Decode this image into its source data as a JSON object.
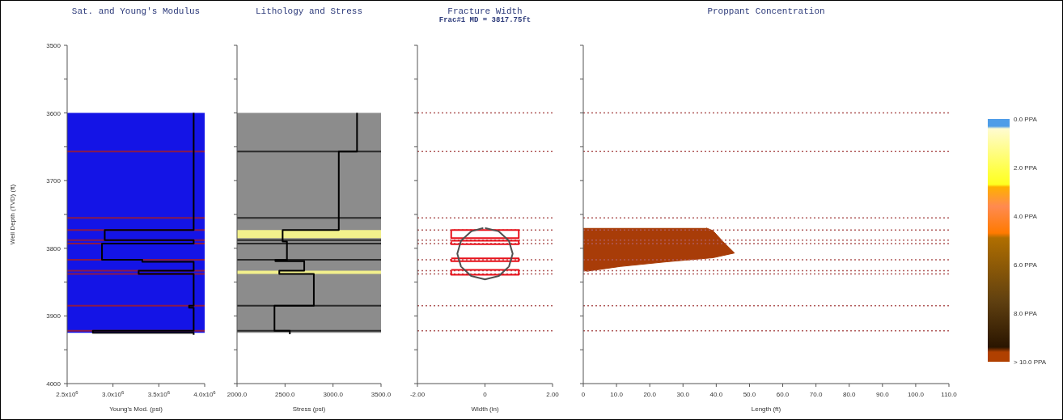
{
  "chart_data": [
    {
      "type": "line",
      "title": "Sat. and Young's Modulus",
      "xlabel": "Young's Mod. (psi)",
      "ylabel": "Well Depth (TVD) (ft)",
      "xlim": [
        2500000,
        4000000
      ],
      "xticks": [
        {
          "value": 2500000,
          "label": "2.5x10$^{6}$"
        },
        {
          "value": 3000000,
          "label": "3.0x10$^{6}$"
        },
        {
          "value": 3500000,
          "label": "3.5x10$^{6}$"
        },
        {
          "value": 4000000,
          "label": "4.0x10$^{6}$"
        }
      ],
      "ylim": [
        4000,
        3500
      ],
      "yticks": [
        3500,
        {
          "value": 3550,
          "label": null
        },
        3600,
        {
          "value": 3650,
          "label": null
        },
        3700,
        {
          "value": 3750,
          "label": null
        },
        3800,
        {
          "value": 3850,
          "label": null
        },
        3900,
        {
          "value": 3950,
          "label": null
        },
        4000
      ],
      "bands": [
        {
          "axis": "y",
          "from": 3600,
          "to": 3925,
          "color": "#1414e6"
        }
      ],
      "ref_lines": [
        {
          "axis": "y",
          "value": 3657,
          "color": "#8b1a4a"
        },
        {
          "axis": "y",
          "value": 3755,
          "color": "#8b1a4a"
        },
        {
          "axis": "y",
          "value": 3773,
          "color": "#8b1a4a"
        },
        {
          "axis": "y",
          "value": 3788,
          "color": "#8b1a4a"
        },
        {
          "axis": "y",
          "value": 3793,
          "color": "#8b1a4a"
        },
        {
          "axis": "y",
          "value": 3817,
          "color": "#8b1a4a"
        },
        {
          "axis": "y",
          "value": 3833,
          "color": "#8b1a4a"
        },
        {
          "axis": "y",
          "value": 3838,
          "color": "#8b1a4a"
        },
        {
          "axis": "y",
          "value": 3885,
          "color": "#8b1a4a"
        },
        {
          "axis": "y",
          "value": 3922,
          "color": "#8b1a4a"
        }
      ],
      "series": [
        {
          "color": "#000000",
          "x": [
            3880000,
            3880000,
            2910000,
            2910000,
            3880000,
            3880000,
            2880000,
            2880000,
            3320000,
            3320000,
            3880000,
            3880000,
            3280000,
            3280000,
            3880000,
            3880000,
            3830000,
            3830000,
            3880000,
            3880000,
            2780000,
            2780000,
            3880000,
            3880000
          ],
          "values": [
            3600,
            3773,
            3773,
            3788,
            3788,
            3793,
            3793,
            3817,
            3817,
            3820,
            3820,
            3833,
            3833,
            3838,
            3838,
            3885,
            3885,
            3888,
            3888,
            3922,
            3922,
            3925,
            3925,
            3928
          ]
        }
      ]
    },
    {
      "type": "line",
      "title": "Lithology and Stress",
      "xlabel": "Stress (psi)",
      "tick_labels": "x",
      "xlim": [
        2000,
        3500
      ],
      "xticks": [
        {
          "value": 2000,
          "label": "2000.0"
        },
        {
          "value": 2500,
          "label": "2500.0"
        },
        {
          "value": 3000,
          "label": "3000.0"
        },
        {
          "value": 3500,
          "label": "3500.0"
        }
      ],
      "ylim": [
        4000,
        3500
      ],
      "yticks": [
        3500,
        {
          "value": 3550,
          "label": null
        },
        3600,
        {
          "value": 3650,
          "label": null
        },
        3700,
        {
          "value": 3750,
          "label": null
        },
        3800,
        {
          "value": 3850,
          "label": null
        },
        3900,
        {
          "value": 3950,
          "label": null
        },
        4000
      ],
      "bands": [
        {
          "axis": "y",
          "from": 3600,
          "to": 3925,
          "color": "#8c8c8c"
        },
        {
          "axis": "y",
          "from": 3773,
          "to": 3785,
          "color": "#f2f08c"
        },
        {
          "axis": "y",
          "from": 3833,
          "to": 3838,
          "color": "#f2f08c"
        }
      ],
      "ref_lines": [
        {
          "axis": "y",
          "value": 3657,
          "color": "#2a2a2a"
        },
        {
          "axis": "y",
          "value": 3755,
          "color": "#2a2a2a"
        },
        {
          "axis": "y",
          "value": 3788,
          "color": "#2a2a2a"
        },
        {
          "axis": "y",
          "value": 3793,
          "color": "#2a2a2a"
        },
        {
          "axis": "y",
          "value": 3817,
          "color": "#2a2a2a"
        },
        {
          "axis": "y",
          "value": 3885,
          "color": "#2a2a2a"
        },
        {
          "axis": "y",
          "value": 3922,
          "color": "#2a2a2a"
        }
      ],
      "series": [
        {
          "color": "#000000",
          "x": [
            3250,
            3250,
            3060,
            3060,
            2475,
            2475,
            2520,
            2520,
            2400,
            2400,
            2700,
            2700,
            2440,
            2440,
            2800,
            2800,
            2390,
            2390,
            2550,
            2550
          ],
          "values": [
            3600,
            3657,
            3657,
            3773,
            3773,
            3790,
            3790,
            3817,
            3817,
            3819,
            3819,
            3833,
            3833,
            3838,
            3838,
            3885,
            3885,
            3922,
            3922,
            3927
          ]
        }
      ]
    },
    {
      "type": "line",
      "title": "Fracture Width",
      "subtitle": "Frac#1 MD = 3817.75ft",
      "xlabel": "Width (in)",
      "tick_labels": "x",
      "xlim": [
        -2,
        2
      ],
      "xticks": [
        {
          "value": -2,
          "label": "-2.00"
        },
        0,
        {
          "value": 2,
          "label": "2.00"
        }
      ],
      "ylim": [
        4000,
        3500
      ],
      "yticks": [
        3500,
        {
          "value": 3550,
          "label": null
        },
        3600,
        {
          "value": 3650,
          "label": null
        },
        3700,
        {
          "value": 3750,
          "label": null
        },
        3800,
        {
          "value": 3850,
          "label": null
        },
        3900,
        {
          "value": 3950,
          "label": null
        },
        4000
      ],
      "ref_lines": [
        {
          "axis": "y",
          "value": 3600,
          "color": "#b05a5a",
          "line_style": "dotted"
        },
        {
          "axis": "y",
          "value": 3657,
          "color": "#b05a5a",
          "line_style": "dotted"
        },
        {
          "axis": "y",
          "value": 3755,
          "color": "#b05a5a",
          "line_style": "dotted"
        },
        {
          "axis": "y",
          "value": 3773,
          "color": "#b05a5a",
          "line_style": "dotted"
        },
        {
          "axis": "y",
          "value": 3788,
          "color": "#b05a5a",
          "line_style": "dotted"
        },
        {
          "axis": "y",
          "value": 3793,
          "color": "#b05a5a",
          "line_style": "dotted"
        },
        {
          "axis": "y",
          "value": 3817,
          "color": "#b05a5a",
          "line_style": "dotted"
        },
        {
          "axis": "y",
          "value": 3833,
          "color": "#b05a5a",
          "line_style": "dotted"
        },
        {
          "axis": "y",
          "value": 3838,
          "color": "#b05a5a",
          "line_style": "dotted"
        },
        {
          "axis": "y",
          "value": 3885,
          "color": "#b05a5a",
          "line_style": "dotted"
        },
        {
          "axis": "y",
          "value": 3922,
          "color": "#b05a5a",
          "line_style": "dotted"
        }
      ],
      "series": [
        {
          "color": "#e8101a",
          "x": [
            -1,
            1,
            1,
            -1,
            -1
          ],
          "values": [
            3773,
            3773,
            3785,
            3785,
            3774
          ]
        },
        {
          "color": "#e8101a",
          "x": [
            -1,
            1,
            1,
            -1,
            -1
          ],
          "values": [
            3789,
            3789,
            3794,
            3794,
            3790
          ]
        },
        {
          "color": "#e8101a",
          "x": [
            -1,
            1,
            1,
            -1,
            -1
          ],
          "values": [
            3815,
            3815,
            3819,
            3819,
            3816
          ]
        },
        {
          "color": "#e8101a",
          "x": [
            -1,
            1,
            1,
            -1,
            -1
          ],
          "values": [
            3832,
            3832,
            3839,
            3839,
            3833
          ]
        },
        {
          "color": "#505050",
          "x": [
            0,
            0.41,
            0.71,
            0.82,
            0.71,
            0.41,
            0,
            -0.41,
            -0.71,
            -0.82,
            -0.71,
            -0.41,
            -0.05
          ],
          "values": [
            3770,
            3775,
            3789,
            3808,
            3827,
            3841,
            3846,
            3841,
            3827,
            3808,
            3789,
            3775,
            3770
          ]
        }
      ]
    },
    {
      "type": "area",
      "title": "Proppant Concentration",
      "xlabel": "Length (ft)",
      "tick_labels": "x",
      "orientation": "horizontal",
      "xlim": [
        0,
        110
      ],
      "xticks": [
        0,
        {
          "value": 10,
          "label": "10.0"
        },
        {
          "value": 20,
          "label": "20.0"
        },
        {
          "value": 30,
          "label": "30.0"
        },
        {
          "value": 40,
          "label": "40.0"
        },
        {
          "value": 50,
          "label": "50.0"
        },
        {
          "value": 60,
          "label": "60.0"
        },
        {
          "value": 70,
          "label": "70.0"
        },
        {
          "value": 80,
          "label": "80.0"
        },
        {
          "value": 90,
          "label": "90.0"
        },
        {
          "value": 100,
          "label": "100.0"
        },
        {
          "value": 110,
          "label": "110.0"
        }
      ],
      "ylim": [
        4000,
        3500
      ],
      "yticks": [
        3500,
        {
          "value": 3550,
          "label": null
        },
        3600,
        {
          "value": 3650,
          "label": null
        },
        3700,
        {
          "value": 3750,
          "label": null
        },
        3800,
        {
          "value": 3850,
          "label": null
        },
        3900,
        {
          "value": 3950,
          "label": null
        },
        4000
      ],
      "clim": [
        0,
        10
      ],
      "cticks": [
        {
          "value": 0,
          "label": "0.0 PPA"
        },
        {
          "value": 2,
          "label": "2.0 PPA"
        },
        {
          "value": 4,
          "label": "4.0 PPA"
        },
        {
          "value": 6,
          "label": "6.0 PPA"
        },
        {
          "value": 8,
          "label": "8.0 PPA"
        },
        {
          "value": 10,
          "label": "> 10.0 PPA"
        }
      ],
      "ref_lines": [
        {
          "axis": "y",
          "value": 3600,
          "color": "#b05a5a",
          "line_style": "dotted"
        },
        {
          "axis": "y",
          "value": 3657,
          "color": "#b05a5a",
          "line_style": "dotted"
        },
        {
          "axis": "y",
          "value": 3755,
          "color": "#b05a5a",
          "line_style": "dotted"
        },
        {
          "axis": "y",
          "value": 3773,
          "color": "#b05a5a",
          "line_style": "dotted"
        },
        {
          "axis": "y",
          "value": 3788,
          "color": "#b05a5a",
          "line_style": "dotted"
        },
        {
          "axis": "y",
          "value": 3793,
          "color": "#b05a5a",
          "line_style": "dotted"
        },
        {
          "axis": "y",
          "value": 3817,
          "color": "#b05a5a",
          "line_style": "dotted"
        },
        {
          "axis": "y",
          "value": 3833,
          "color": "#b05a5a",
          "line_style": "dotted"
        },
        {
          "axis": "y",
          "value": 3838,
          "color": "#b05a5a",
          "line_style": "dotted"
        },
        {
          "axis": "y",
          "value": 3885,
          "color": "#b05a5a",
          "line_style": "dotted"
        },
        {
          "axis": "y",
          "value": 3922,
          "color": "#b05a5a",
          "line_style": "dotted"
        }
      ],
      "series": [
        {
          "color": "#a83c08",
          "x": [
            3770,
            3774,
            3790,
            3807,
            3814,
            3820,
            3827,
            3834
          ],
          "values": [
            37,
            39,
            42,
            45.5,
            39,
            25,
            11,
            1
          ]
        }
      ]
    }
  ]
}
